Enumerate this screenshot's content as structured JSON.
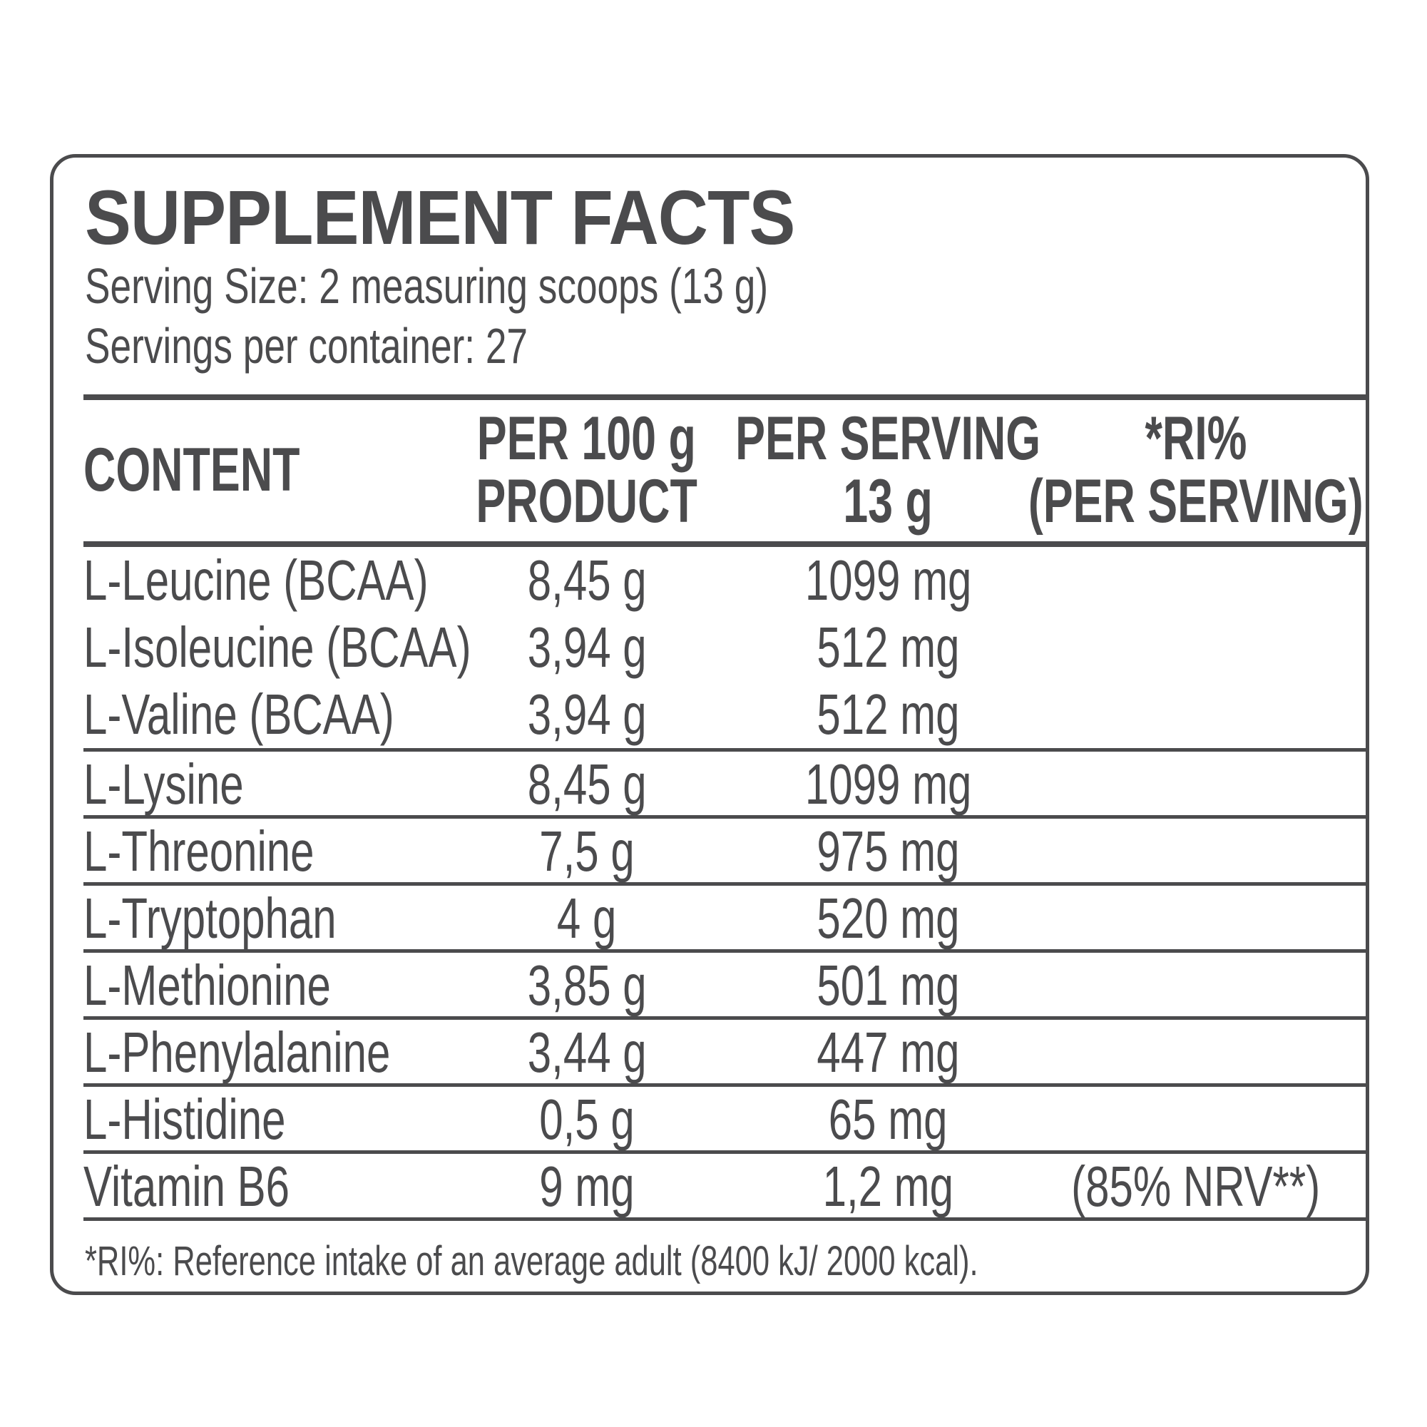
{
  "label": {
    "title": "SUPPLEMENT FACTS",
    "serving_size": "Serving Size: 2 measuring scoops (13 g)",
    "servings_per_container": "Servings per container: 27",
    "footnote": "*RI%: Reference intake of an average adult (8400 kJ/ 2000 kcal)."
  },
  "table": {
    "header": {
      "content": "CONTENT",
      "per_100g": {
        "line1": "PER 100 g",
        "line2": "PRODUCT"
      },
      "per_serving": {
        "line1": "PER SERVING",
        "line2": "13 g"
      },
      "ri": {
        "line1": "*RI%",
        "line2": "(PER SERVING)"
      }
    },
    "rows": [
      {
        "name": "L-Leucine (BCAA)",
        "per_100g": "8,45 g",
        "per_serving": "1099 mg",
        "ri": "",
        "divider_above": false
      },
      {
        "name": "L-Isoleucine (BCAA)",
        "per_100g": "3,94 g",
        "per_serving": "512 mg",
        "ri": "",
        "divider_above": false
      },
      {
        "name": "L-Valine (BCAA)",
        "per_100g": "3,94 g",
        "per_serving": "512 mg",
        "ri": "",
        "divider_above": false
      },
      {
        "name": "L-Lysine",
        "per_100g": "8,45 g",
        "per_serving": "1099 mg",
        "ri": "",
        "divider_above": true
      },
      {
        "name": "L-Threonine",
        "per_100g": "7,5 g",
        "per_serving": "975 mg",
        "ri": "",
        "divider_above": true
      },
      {
        "name": "L-Tryptophan",
        "per_100g": "4 g",
        "per_serving": "520 mg",
        "ri": "",
        "divider_above": true
      },
      {
        "name": "L-Methionine",
        "per_100g": "3,85 g",
        "per_serving": "501 mg",
        "ri": "",
        "divider_above": true
      },
      {
        "name": "L-Phenylalanine",
        "per_100g": "3,44 g",
        "per_serving": "447 mg",
        "ri": "",
        "divider_above": true
      },
      {
        "name": "L-Histidine",
        "per_100g": "0,5 g",
        "per_serving": "65 mg",
        "ri": "",
        "divider_above": true
      },
      {
        "name": "Vitamin B6",
        "per_100g": "9 mg",
        "per_serving": "1,2 mg",
        "ri": "(85% NRV**)",
        "divider_above": true
      }
    ]
  },
  "colors": {
    "ink": "#4b4b4d",
    "background": "#ffffff"
  }
}
